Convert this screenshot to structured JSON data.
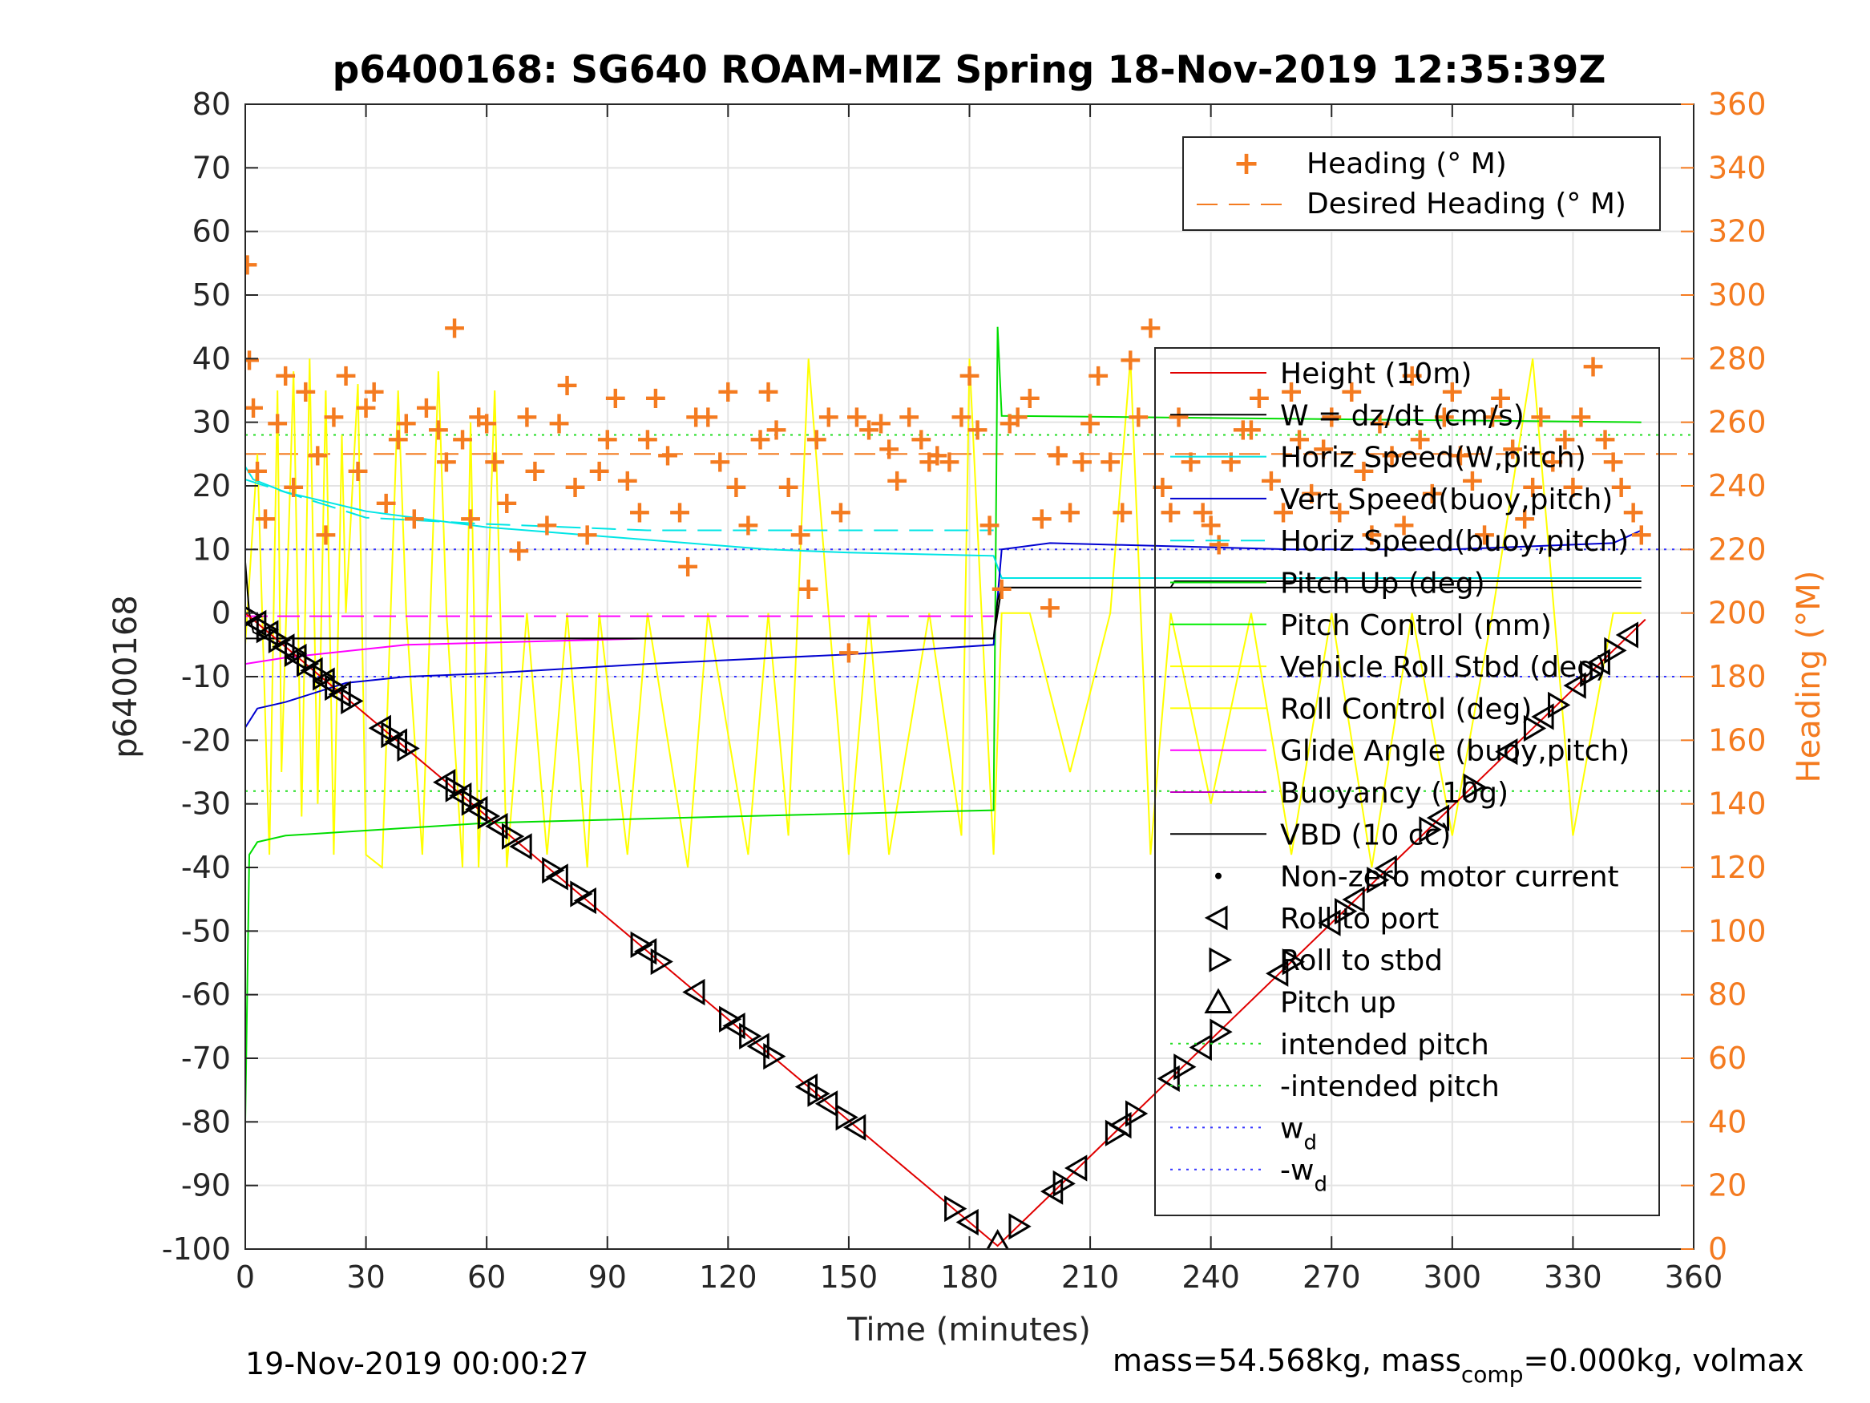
{
  "title": "p6400168: SG640 ROAM-MIZ Spring 18-Nov-2019 12:35:39Z",
  "footer": {
    "date": "19-Nov-2019 00:00:27",
    "mass_a": "mass=54.568kg, mass",
    "mass_sub": "comp",
    "mass_b": "=0.000kg, volmax"
  },
  "colors": {
    "heading": "#F47B20",
    "height": "#E00000",
    "w": "#000000",
    "horiz_speed": "#00E5E5",
    "vert_speed": "#0000D0",
    "pitch_up": "#00DD00",
    "pitch_control": "#00EE00",
    "roll": "#FFFF00",
    "glide": "#FF00FF",
    "buoyancy": "#C000C0",
    "vbd": "#000000",
    "intended_pitch": "#22DD22",
    "wd": "#3333FF"
  },
  "chart_data": {
    "type": "line",
    "title": "p6400168: SG640 ROAM-MIZ Spring 18-Nov-2019 12:35:39Z",
    "xlabel": "Time (minutes)",
    "ylabel_left": "p6400168",
    "ylabel_right": "Heading (°M)",
    "xlim": [
      0,
      360
    ],
    "ylim_left": [
      -100,
      80
    ],
    "ylim_right": [
      0,
      360
    ],
    "grid": true,
    "x_ticks": [
      "0",
      "30",
      "60",
      "90",
      "120",
      "150",
      "180",
      "210",
      "240",
      "270",
      "300",
      "330",
      "360"
    ],
    "y_ticks_left": [
      "80",
      "70",
      "60",
      "50",
      "40",
      "30",
      "20",
      "10",
      "0",
      "-10",
      "-20",
      "-30",
      "-40",
      "-50",
      "-60",
      "-70",
      "-80",
      "-90",
      "-100"
    ],
    "y_ticks_right": [
      "360",
      "340",
      "320",
      "300",
      "280",
      "260",
      "240",
      "220",
      "200",
      "180",
      "160",
      "140",
      "120",
      "100",
      "80",
      "60",
      "40",
      "20",
      "0"
    ],
    "legend_right_axis": {
      "position": "top-right",
      "entries": [
        "Heading (° M)",
        "Desired Heading (° M)"
      ]
    },
    "legend_left_axis": {
      "position": "right",
      "entries": [
        "Height (10m)",
        "W = dz/dt (cm/s)",
        "Horiz Speed(W,pitch)",
        "Vert Speed(buoy,pitch)",
        "Horiz Speed(buoy,pitch)",
        "Pitch Up (deg)",
        "Pitch Control (mm)",
        "Vehicle Roll Stbd (deg)",
        "Roll Control (deg)",
        "Glide Angle (buoy,pitch)",
        "Buoyancy (10g)",
        "VBD (10 cc)",
        "Non-zero motor current",
        "Roll to port",
        "Roll to stbd",
        "Pitch up",
        "intended pitch",
        "-intended pitch",
        "w",
        "-w"
      ],
      "wd_sub": "d"
    },
    "series": [
      {
        "name": "Height (10m)",
        "axis": "left",
        "x": [
          0,
          187,
          348
        ],
        "y": [
          0,
          -99.5,
          -1
        ]
      },
      {
        "name": "W = dz/dt (cm/s)",
        "axis": "left",
        "x": [
          0,
          1,
          2,
          5,
          10,
          60,
          150,
          186,
          187,
          188,
          189,
          230,
          231,
          347
        ],
        "y": [
          8,
          0,
          -3,
          -4,
          -4,
          -4,
          -4,
          -4,
          2,
          4,
          4,
          4,
          5,
          5
        ]
      },
      {
        "name": "Horiz Speed(W,pitch)",
        "axis": "left",
        "x": [
          0,
          2,
          10,
          30,
          60,
          100,
          130,
          150,
          186,
          188,
          347
        ],
        "y": [
          23,
          21,
          19,
          16,
          13.5,
          11.5,
          10,
          9.5,
          9,
          5.5,
          5.5
        ]
      },
      {
        "name": "Vert Speed(buoy,pitch)",
        "axis": "left",
        "x": [
          0,
          3,
          10,
          25,
          40,
          60,
          100,
          150,
          186,
          188,
          200,
          260,
          300,
          340,
          347
        ],
        "y": [
          -18,
          -15,
          -14,
          -11,
          -10,
          -9.5,
          -8,
          -6.5,
          -5,
          10,
          11,
          10,
          10,
          11,
          13
        ]
      },
      {
        "name": "Horiz Speed(buoy,pitch)",
        "axis": "left",
        "x": [
          0,
          30,
          60,
          100,
          150,
          186
        ],
        "y": [
          21,
          15,
          14,
          13,
          13,
          13
        ]
      },
      {
        "name": "Pitch Up (deg)",
        "axis": "left",
        "x": [
          0,
          1,
          3,
          10,
          60,
          120,
          186,
          187,
          188,
          347
        ],
        "y": [
          -80,
          -38,
          -36,
          -35,
          -33,
          -32,
          -31,
          45,
          31,
          30
        ]
      },
      {
        "name": "Glide Angle (buoy,pitch)",
        "axis": "left",
        "x": [
          0,
          10,
          40,
          100,
          186
        ],
        "y": [
          -8,
          -7,
          -5,
          -4,
          -4
        ]
      },
      {
        "name": "Buoyancy (10g)",
        "axis": "left",
        "x": [
          0,
          186
        ],
        "y": [
          -0.5,
          -0.5
        ]
      },
      {
        "name": "VBD (10 cc)",
        "axis": "left",
        "x": [
          0,
          186,
          188,
          347
        ],
        "y": [
          -4,
          -4,
          4,
          4
        ]
      },
      {
        "name": "intended pitch",
        "axis": "left",
        "x": [
          0,
          360
        ],
        "y": [
          28,
          28
        ]
      },
      {
        "name": "-intended pitch",
        "axis": "left",
        "x": [
          0,
          360
        ],
        "y": [
          -28,
          -28
        ]
      },
      {
        "name": "w",
        "axis": "left",
        "x": [
          0,
          360
        ],
        "y": [
          10,
          10
        ]
      },
      {
        "name": "-w",
        "axis": "left",
        "x": [
          0,
          360
        ],
        "y": [
          -10,
          -10
        ]
      },
      {
        "name": "Desired Heading (° M)",
        "axis": "right",
        "x": [
          0,
          360
        ],
        "y": [
          250,
          250
        ]
      },
      {
        "name": "Heading (° M)",
        "axis": "right",
        "x": [
          0.5,
          1,
          2,
          3,
          5,
          8,
          10,
          12,
          15,
          18,
          20,
          22,
          25,
          28,
          30,
          32,
          35,
          38,
          40,
          42,
          45,
          48,
          50,
          52,
          54,
          56,
          58,
          60,
          62,
          65,
          68,
          70,
          72,
          75,
          78,
          80,
          82,
          85,
          88,
          90,
          92,
          95,
          98,
          100,
          102,
          105,
          108,
          110,
          112,
          115,
          118,
          120,
          122,
          125,
          128,
          130,
          132,
          135,
          138,
          140,
          142,
          145,
          148,
          150,
          152,
          155,
          158,
          160,
          162,
          165,
          168,
          170,
          172,
          175,
          178,
          180,
          182,
          185,
          188,
          190,
          192,
          195,
          198,
          200,
          202,
          205,
          208,
          210,
          212,
          215,
          218,
          220,
          222,
          225,
          228,
          230,
          232,
          235,
          238,
          240,
          242,
          245,
          248,
          250,
          252,
          255,
          258,
          260,
          262,
          265,
          268,
          270,
          272,
          275,
          278,
          280,
          282,
          285,
          288,
          290,
          292,
          295,
          298,
          300,
          302,
          305,
          308,
          310,
          312,
          315,
          318,
          320,
          322,
          325,
          328,
          330,
          332,
          335,
          338,
          340,
          342,
          345,
          347
        ],
        "y": [
          310,
          280,
          265,
          245,
          230,
          260,
          275,
          240,
          270,
          250,
          225,
          262,
          275,
          245,
          265,
          270,
          235,
          255,
          260,
          230,
          265,
          258,
          248,
          290,
          255,
          230,
          262,
          260,
          248,
          235,
          220,
          262,
          245,
          228,
          260,
          272,
          240,
          225,
          245,
          255,
          268,
          242,
          232,
          255,
          268,
          250,
          232,
          215,
          262,
          262,
          248,
          270,
          240,
          228,
          255,
          270,
          258,
          240,
          225,
          208,
          255,
          262,
          232,
          188,
          262,
          258,
          260,
          252,
          242,
          262,
          255,
          248,
          250,
          248,
          262,
          275,
          258,
          228,
          208,
          260,
          262,
          268,
          230,
          202,
          250,
          232,
          248,
          260,
          275,
          248,
          232,
          280,
          262,
          290,
          240,
          232,
          262,
          248,
          232,
          228,
          222,
          248,
          258,
          258,
          268,
          242,
          232,
          270,
          255,
          238,
          252,
          262,
          232,
          270,
          245,
          225,
          260,
          250,
          228,
          275,
          255,
          238,
          262,
          270,
          250,
          242,
          225,
          262,
          268,
          252,
          230,
          240,
          262,
          248,
          255,
          240,
          262,
          278,
          255,
          248,
          240,
          232,
          225
        ]
      },
      {
        "name": "Vehicle Roll Stbd (deg)",
        "axis": "left",
        "x": [
          0,
          3,
          6,
          8,
          9,
          12,
          14,
          16,
          18,
          20,
          22,
          24,
          25,
          28,
          30,
          34,
          38,
          40,
          44,
          48,
          50,
          54,
          56,
          58,
          62,
          65,
          70,
          75,
          80,
          85,
          88,
          95,
          100,
          110,
          115,
          125,
          130,
          135,
          140,
          145,
          150,
          155,
          160,
          170,
          178,
          180,
          183,
          186,
          188,
          195,
          205,
          215,
          220,
          225,
          230,
          240,
          250,
          260,
          270,
          280,
          290,
          300,
          310,
          320,
          330,
          340,
          347
        ],
        "y": [
          -5,
          25,
          -38,
          35,
          -25,
          38,
          -32,
          40,
          -30,
          35,
          -38,
          28,
          0,
          36,
          -38,
          -40,
          35,
          0,
          -38,
          38,
          0,
          -40,
          30,
          -40,
          35,
          -40,
          0,
          -38,
          0,
          -40,
          0,
          -38,
          0,
          -40,
          0,
          -38,
          0,
          -35,
          40,
          0,
          -38,
          0,
          -38,
          0,
          -35,
          40,
          0,
          -38,
          0,
          0,
          -25,
          0,
          40,
          -38,
          0,
          -30,
          0,
          -38,
          0,
          -40,
          0,
          -35,
          0,
          40,
          -35,
          0,
          0
        ]
      }
    ],
    "markers": {
      "roll_to_port_and_stbd_times": [
        1,
        3,
        5,
        6,
        8,
        10,
        12,
        13,
        15,
        17,
        19,
        20,
        22,
        24,
        26,
        34,
        36,
        38,
        40,
        50,
        52,
        54,
        56,
        58,
        60,
        63,
        66,
        69,
        76,
        78,
        83,
        85,
        98,
        100,
        103,
        112,
        120,
        122,
        125,
        128,
        131,
        140,
        142,
        145,
        149,
        152,
        176,
        180,
        192,
        201,
        203,
        207,
        216,
        218,
        221,
        230,
        233,
        238,
        242,
        257,
        260,
        270,
        273,
        276,
        281,
        284,
        294,
        297,
        305,
        314,
        320,
        323,
        326,
        331,
        334,
        337,
        340,
        344
      ],
      "pitch_up_times": [
        187
      ]
    }
  }
}
